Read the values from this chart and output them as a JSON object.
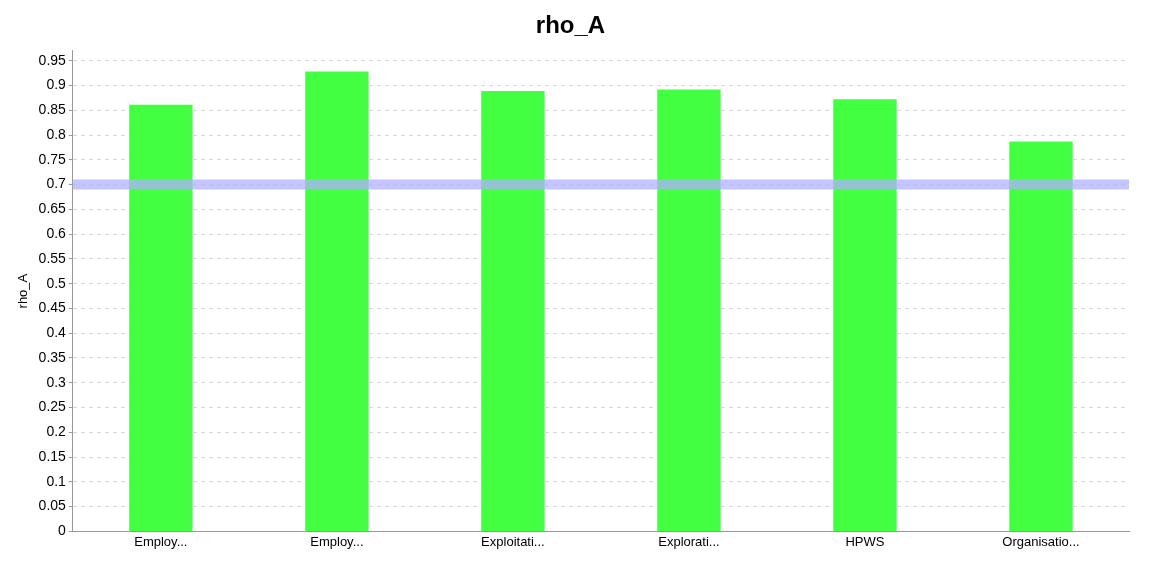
{
  "chart_data": {
    "type": "bar",
    "title": "rho_A",
    "ylabel": "rho_A",
    "categories": [
      "Employ...",
      "Employ...",
      "Exploitati...",
      "Explorati...",
      "HPWS",
      "Organisatio..."
    ],
    "values": [
      0.861,
      0.928,
      0.889,
      0.892,
      0.872,
      0.787
    ],
    "color": "#42ff42",
    "ylim": [
      0,
      0.97
    ],
    "yticks": [
      0,
      0.05,
      0.1,
      0.15,
      0.2,
      0.25,
      0.3,
      0.35,
      0.4,
      0.45,
      0.5,
      0.55,
      0.6,
      0.65,
      0.7,
      0.75,
      0.8,
      0.85,
      0.9,
      0.95
    ],
    "grid": "y",
    "legend": false,
    "ref_lines": [
      {
        "axis": "y",
        "value": 0.7,
        "color": "#b0b0ff"
      }
    ]
  }
}
